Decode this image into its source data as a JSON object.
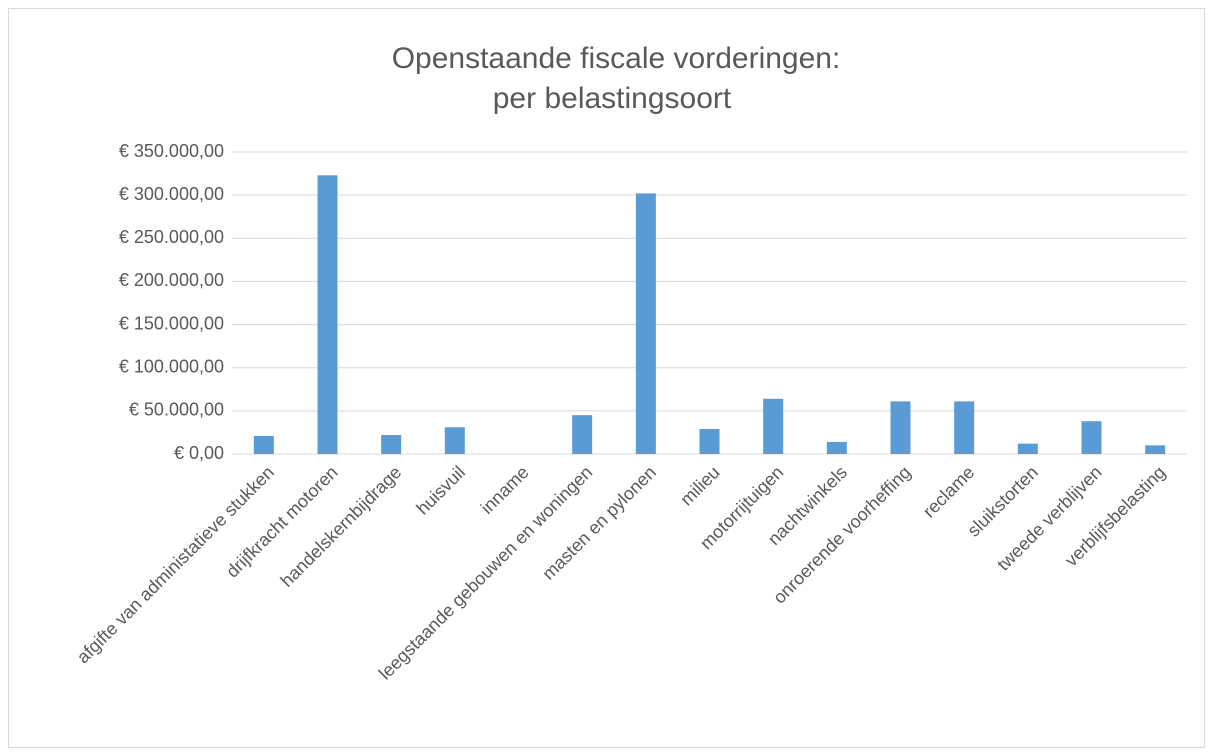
{
  "chart_data": {
    "type": "bar",
    "title": [
      "Openstaande fiscale vorderingen:",
      "per belastingsoort"
    ],
    "categories": [
      "afgifte van administatieve stukken",
      "drijfkracht motoren",
      "handelskernbijdrage",
      "huisvuil",
      "inname",
      "leegstaande gebouwen en woningen",
      "masten en pylonen",
      "milieu",
      "motorrijtuigen",
      "nachtwinkels",
      "onroerende voorheffing",
      "reclame",
      "sluikstorten",
      "tweede verblijven",
      "verblijfsbelasting"
    ],
    "values": [
      21000,
      323000,
      22000,
      31000,
      0,
      45000,
      302000,
      29000,
      64000,
      14000,
      61000,
      61000,
      12000,
      38000,
      10000
    ],
    "color": "#5b9bd5",
    "ylim": [
      0,
      350000
    ],
    "yticks": [
      {
        "value": 0,
        "label": "€ 0,00"
      },
      {
        "value": 50000,
        "label": "€ 50.000,00"
      },
      {
        "value": 100000,
        "label": "€ 100.000,00"
      },
      {
        "value": 150000,
        "label": "€ 150.000,00"
      },
      {
        "value": 200000,
        "label": "€ 200.000,00"
      },
      {
        "value": 250000,
        "label": "€ 250.000,00"
      },
      {
        "value": 300000,
        "label": "€ 300.000,00"
      },
      {
        "value": 350000,
        "label": "€ 350.000,00"
      }
    ],
    "grid": true
  }
}
